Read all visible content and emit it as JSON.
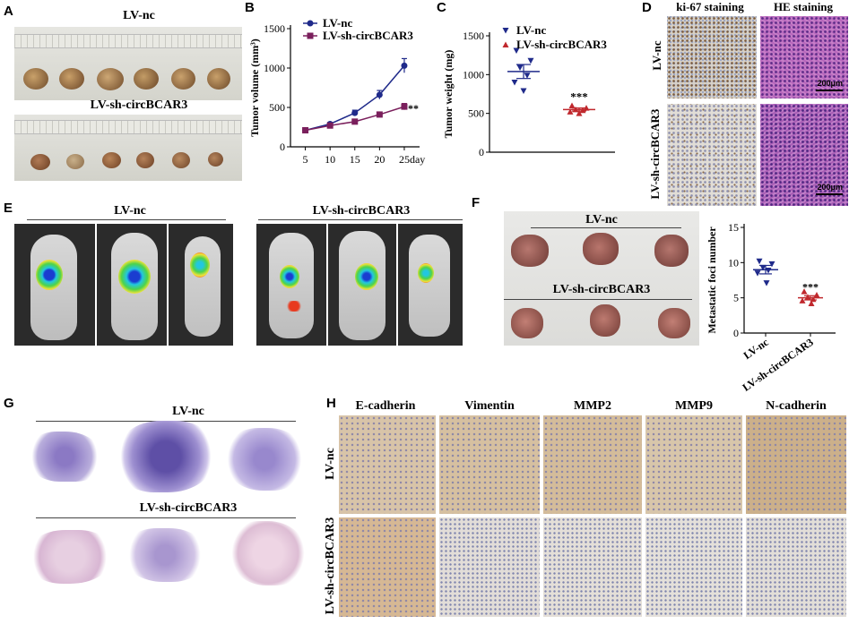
{
  "panels": {
    "A": {
      "label": "A",
      "group1": "LV-nc",
      "group2": "LV-sh-circBCAR3"
    },
    "B": {
      "label": "B"
    },
    "C": {
      "label": "C"
    },
    "D": {
      "label": "D",
      "col1": "ki-67 staining",
      "col2": "HE staining",
      "row1": "LV-nc",
      "row2": "LV-sh-circBCAR3",
      "scale1": "200μm",
      "scale2": "200μm"
    },
    "E": {
      "label": "E",
      "group1": "LV-nc",
      "group2": "LV-sh-circBCAR3"
    },
    "F": {
      "label": "F",
      "group1": "LV-nc",
      "group2": "LV-sh-circBCAR3"
    },
    "G": {
      "label": "G",
      "group1": "LV-nc",
      "group2": "LV-sh-circBCAR3"
    },
    "H": {
      "label": "H",
      "markers": [
        "E-cadherin",
        "Vimentin",
        "MMP2",
        "MMP9",
        "N-cadherin"
      ],
      "row1": "LV-nc",
      "row2": "LV-sh-circBCAR3"
    }
  },
  "chart_data": [
    {
      "type": "line",
      "panel": "B",
      "ylabel": "Tumor volume (mm³)",
      "x": [
        5,
        10,
        15,
        20,
        25
      ],
      "xticks": [
        "5",
        "10",
        "15",
        "20",
        "25day"
      ],
      "yticks": [
        "0",
        "500",
        "1000",
        "1500"
      ],
      "ylim": [
        0,
        1500
      ],
      "series": [
        {
          "name": "LV-nc",
          "color": "#1f2a8a",
          "values": [
            210,
            290,
            430,
            660,
            1030
          ],
          "err": [
            15,
            20,
            35,
            55,
            90
          ]
        },
        {
          "name": "LV-sh-circBCAR3",
          "color": "#7a1f5c",
          "values": [
            210,
            270,
            320,
            410,
            510
          ],
          "err": [
            15,
            15,
            20,
            30,
            40
          ]
        }
      ],
      "annotation": "**"
    },
    {
      "type": "scatter",
      "panel": "C",
      "ylabel": "Tumor weight (mg)",
      "yticks": [
        "0",
        "500",
        "1000",
        "1500"
      ],
      "ylim": [
        0,
        1500
      ],
      "series": [
        {
          "name": "LV-nc",
          "color": "#1f2a8a",
          "points": [
            1310,
            1180,
            1090,
            990,
            900,
            790
          ],
          "mean": 1040,
          "sem": 90
        },
        {
          "name": "LV-sh-circBCAR3",
          "color": "#c0282d",
          "points": [
            600,
            570,
            550,
            540,
            520,
            500
          ],
          "mean": 550,
          "sem": 20
        }
      ],
      "annotation": "***"
    },
    {
      "type": "scatter",
      "panel": "F",
      "ylabel": "Metastatic foci number",
      "categories": [
        "LV-nc",
        "LV-sh-circBCAR3"
      ],
      "yticks": [
        "0",
        "5",
        "10",
        "15"
      ],
      "ylim": [
        0,
        15
      ],
      "series": [
        {
          "name": "LV-nc",
          "color": "#1f2a8a",
          "points": [
            10.2,
            9.8,
            9.3,
            8.9,
            8.5,
            7.1
          ],
          "mean": 9.0,
          "sem": 0.6
        },
        {
          "name": "LV-sh-circBCAR3",
          "color": "#c0282d",
          "points": [
            5.9,
            5.4,
            5.1,
            4.8,
            4.6,
            4.2
          ],
          "mean": 5.0,
          "sem": 0.3
        }
      ],
      "annotation": "***"
    }
  ]
}
